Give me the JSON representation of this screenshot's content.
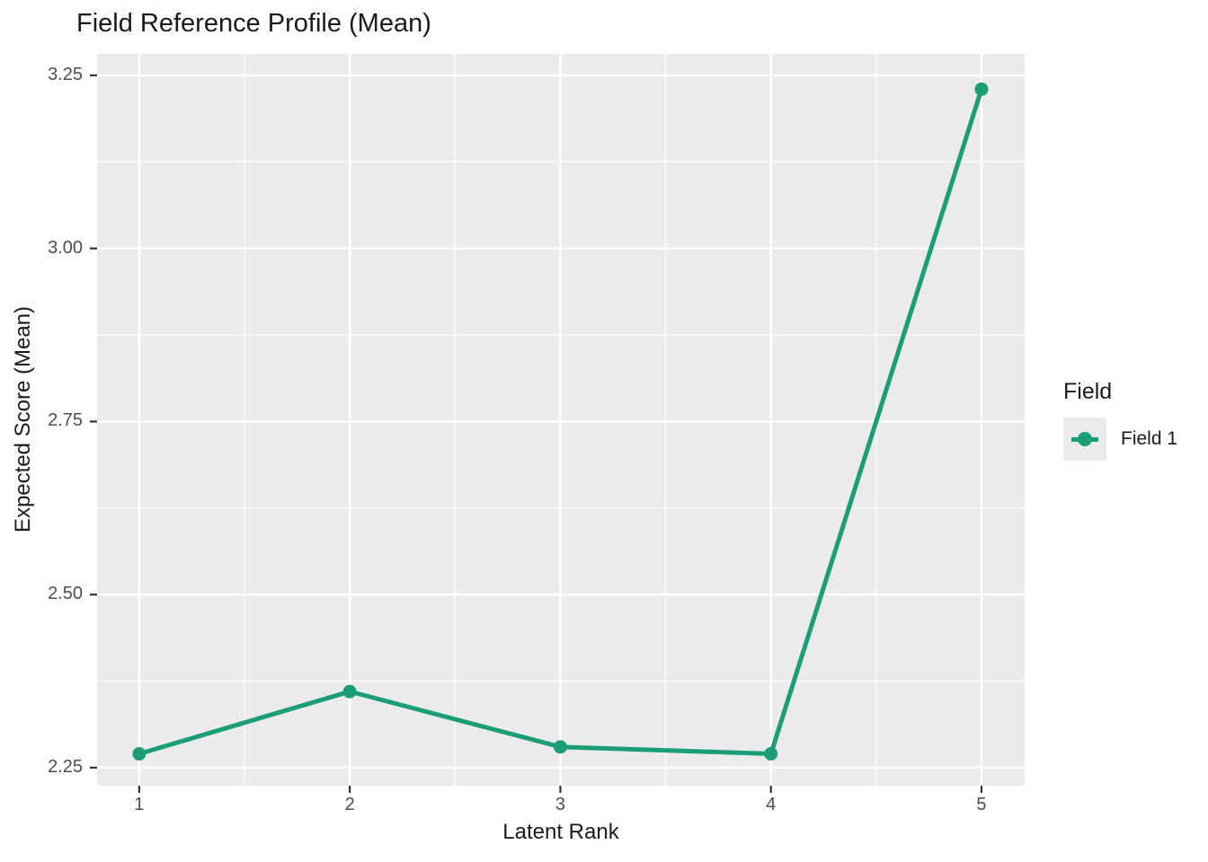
{
  "title": "Field Reference Profile (Mean)",
  "axes": {
    "x_title": "Latent Rank",
    "y_title": "Expected Score (Mean)"
  },
  "legend": {
    "title": "Field",
    "items": [
      {
        "label": "Field 1",
        "color": "#1b9e77"
      }
    ]
  },
  "colors": {
    "panel_background": "#ebebeb",
    "grid": "#ffffff",
    "tick_mark": "#333333",
    "tick_label": "#4d4d4d",
    "series": "#1b9e77"
  },
  "chart_data": {
    "type": "line",
    "title": "Field Reference Profile (Mean)",
    "xlabel": "Latent Rank",
    "ylabel": "Expected Score (Mean)",
    "x": [
      1,
      2,
      3,
      4,
      5
    ],
    "series": [
      {
        "name": "Field 1",
        "color": "#1b9e77",
        "values": [
          2.27,
          2.36,
          2.28,
          2.27,
          3.23
        ]
      }
    ],
    "x_ticks": [
      1,
      2,
      3,
      4,
      5
    ],
    "x_tick_labels": [
      "1",
      "2",
      "3",
      "4",
      "5"
    ],
    "y_ticks": [
      2.25,
      2.5,
      2.75,
      3.0,
      3.25
    ],
    "y_tick_labels": [
      "2.25",
      "2.50",
      "2.75",
      "3.00",
      "3.25"
    ],
    "xlim": [
      0.8,
      5.205
    ],
    "ylim": [
      2.224,
      3.281
    ],
    "grid": "major+minor",
    "legend_position": "right",
    "panel_bg": "#ebebeb",
    "grid_color": "#ffffff"
  }
}
